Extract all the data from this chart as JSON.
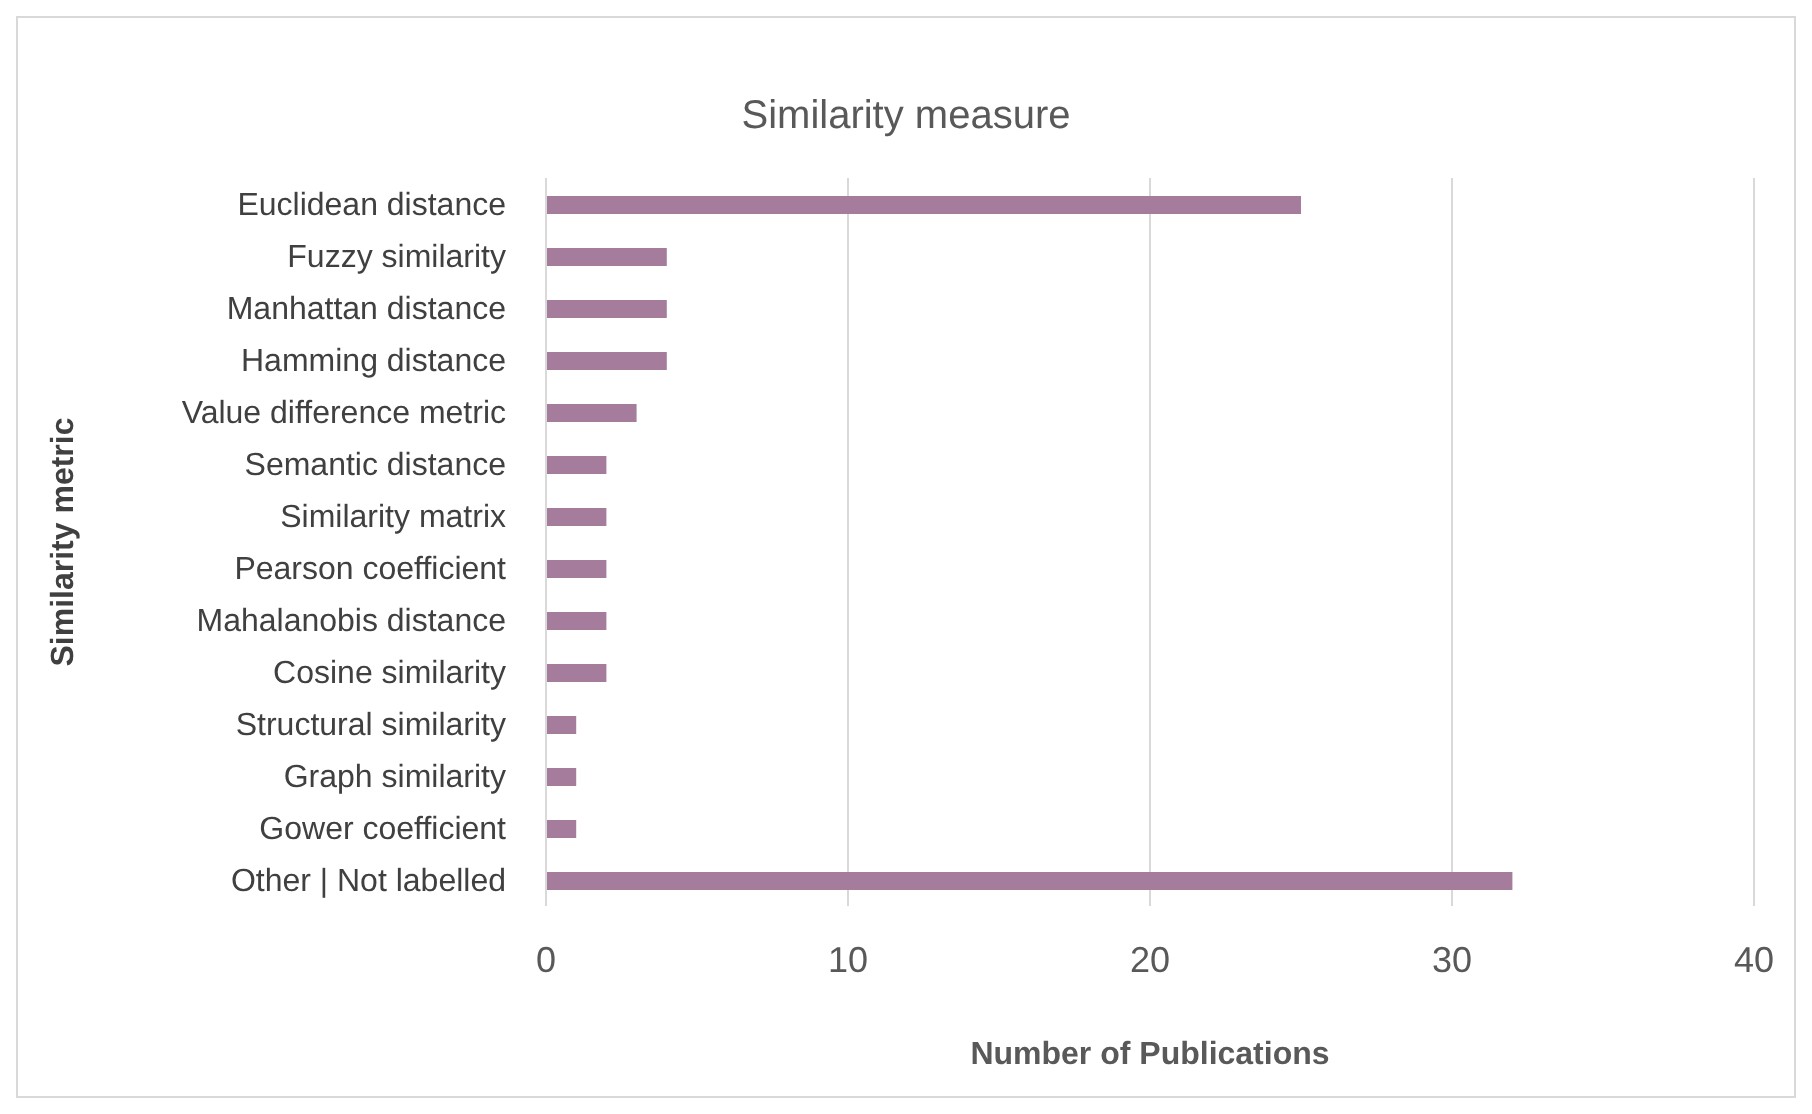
{
  "chart_data": {
    "type": "bar",
    "orientation": "horizontal",
    "title": "Similarity measure",
    "xlabel": "Number of Publications",
    "ylabel": "Similarity metric",
    "categories": [
      "Euclidean distance",
      "Fuzzy similarity",
      "Manhattan distance",
      "Hamming distance",
      "Value difference metric",
      "Semantic distance",
      "Similarity matrix",
      "Pearson coefficient",
      "Mahalanobis distance",
      "Cosine similarity",
      "Structural similarity",
      "Graph similarity",
      "Gower coefficient",
      "Other | Not labelled"
    ],
    "values": [
      25,
      4,
      4,
      4,
      3,
      2,
      2,
      2,
      2,
      2,
      1,
      1,
      1,
      32
    ],
    "color": "#a67c9d",
    "xlim": [
      0,
      40
    ],
    "xticks": [
      0,
      10,
      20,
      30,
      40
    ],
    "grid": "x",
    "legend": false
  }
}
